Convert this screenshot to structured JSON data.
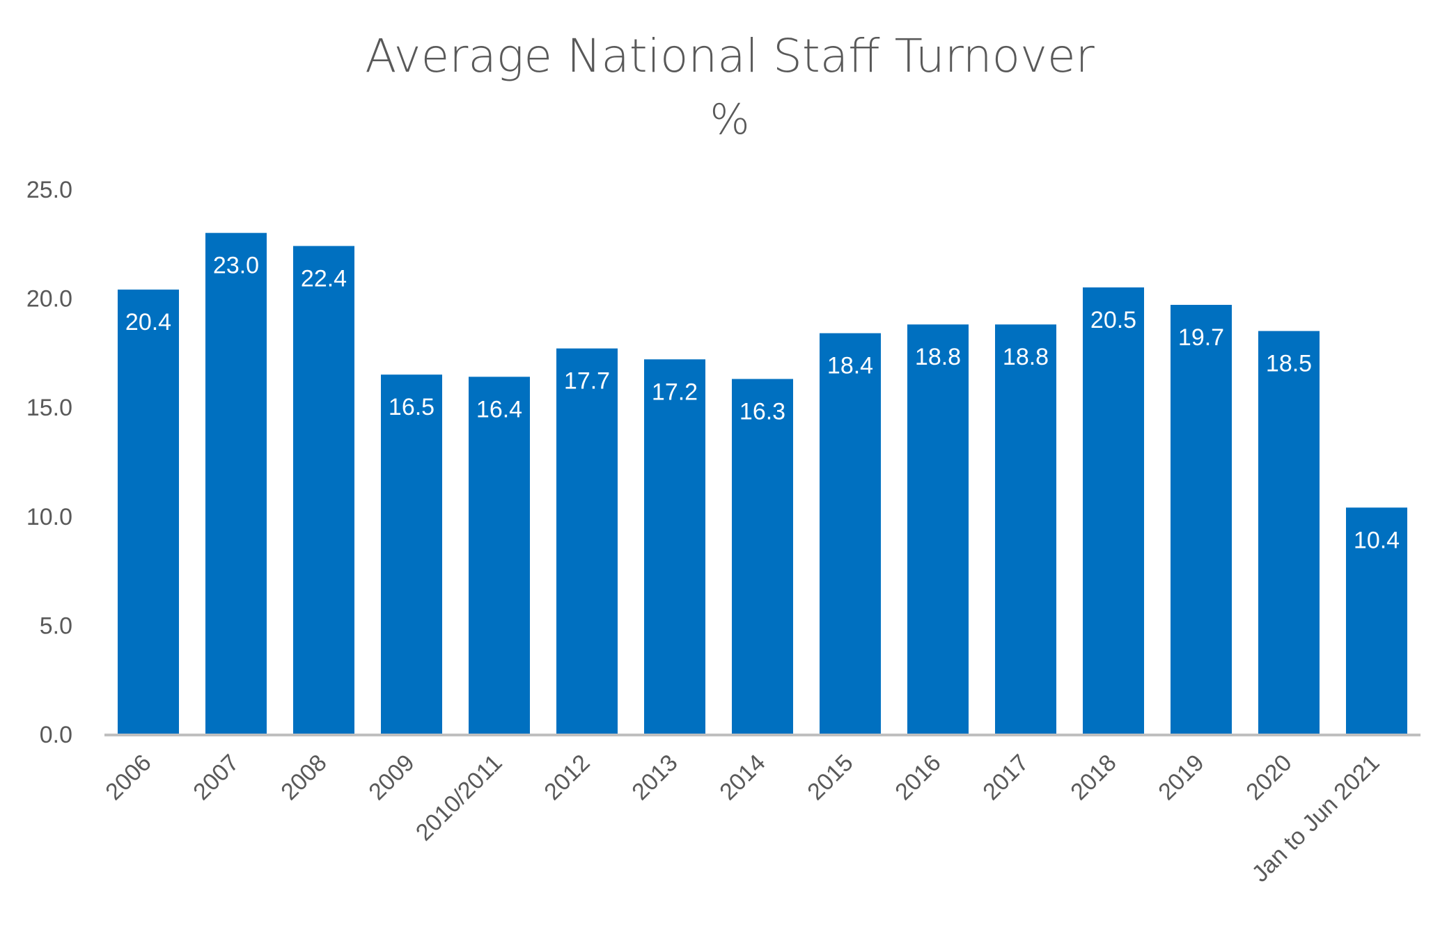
{
  "chart_data": {
    "type": "bar",
    "title": "Average National Staff Turnover",
    "subtitle": "%",
    "xlabel": "",
    "ylabel": "",
    "categories": [
      "2006",
      "2007",
      "2008",
      "2009",
      "2010/2011",
      "2012",
      "2013",
      "2014",
      "2015",
      "2016",
      "2017",
      "2018",
      "2019",
      "2020",
      "Jan to Jun 2021"
    ],
    "values": [
      20.4,
      23.0,
      22.4,
      16.5,
      16.4,
      17.7,
      17.2,
      16.3,
      18.4,
      18.8,
      18.8,
      20.5,
      19.7,
      18.5,
      10.4
    ],
    "data_labels": [
      "20.4",
      "23.0",
      "22.4",
      "16.5",
      "16.4",
      "17.7",
      "17.2",
      "16.3",
      "18.4",
      "18.8",
      "18.8",
      "20.5",
      "19.7",
      "18.5",
      "10.4"
    ],
    "ylim": [
      0,
      25
    ],
    "yticks": [
      "0.0",
      "5.0",
      "10.0",
      "15.0",
      "20.0",
      "25.0"
    ],
    "ytick_values": [
      0,
      5,
      10,
      15,
      20,
      25
    ],
    "grid": false,
    "legend": "none",
    "bar_color": "#0070C0",
    "axis_color": "#BFBFBF"
  }
}
